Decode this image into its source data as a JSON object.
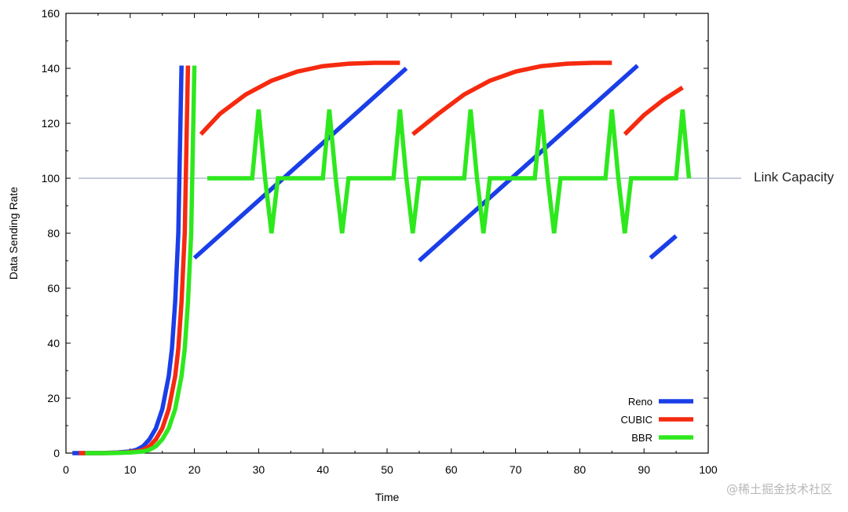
{
  "chart_data": {
    "type": "line",
    "title": "",
    "xlabel": "Time",
    "ylabel": "Data Sending Rate",
    "xlim": [
      0,
      100
    ],
    "ylim": [
      0,
      160
    ],
    "xticks": [
      "0",
      "10",
      "20",
      "30",
      "40",
      "50",
      "60",
      "70",
      "80",
      "90",
      "100"
    ],
    "yticks": [
      "0",
      "20",
      "40",
      "60",
      "80",
      "100",
      "120",
      "140",
      "160"
    ],
    "grid": false,
    "legend_position": "bottom-right",
    "reference_line": {
      "label": "Link Capacity",
      "y": 100,
      "color": "#8a9bb5"
    },
    "series": [
      {
        "name": "Reno",
        "color": "#1a3ee8",
        "segments": [
          [
            [
              1,
              0
            ],
            [
              5,
              0
            ],
            [
              8,
              0.2
            ],
            [
              10,
              0.6
            ],
            [
              11,
              1.2
            ],
            [
              12,
              2.5
            ],
            [
              13,
              5
            ],
            [
              14,
              9
            ],
            [
              15,
              16
            ],
            [
              16,
              28
            ],
            [
              16.5,
              38
            ],
            [
              17,
              55
            ],
            [
              17.5,
              80
            ],
            [
              18,
              141
            ]
          ],
          [
            [
              20,
              71
            ],
            [
              53,
              140
            ]
          ],
          [
            [
              55,
              70
            ],
            [
              89,
              141
            ]
          ],
          [
            [
              91,
              71
            ],
            [
              95,
              79
            ]
          ]
        ]
      },
      {
        "name": "CUBIC",
        "color": "#f52a0f",
        "segments": [
          [
            [
              2,
              0
            ],
            [
              6,
              0
            ],
            [
              9,
              0.2
            ],
            [
              11,
              0.6
            ],
            [
              12,
              1.2
            ],
            [
              13,
              2.5
            ],
            [
              14,
              5
            ],
            [
              15,
              9
            ],
            [
              16,
              16
            ],
            [
              17,
              28
            ],
            [
              17.5,
              38
            ],
            [
              18,
              55
            ],
            [
              18.5,
              80
            ],
            [
              19,
              141
            ]
          ],
          [
            [
              21,
              116
            ],
            [
              24,
              123.5
            ],
            [
              28,
              130.5
            ],
            [
              32,
              135.5
            ],
            [
              36,
              138.8
            ],
            [
              40,
              140.8
            ],
            [
              44,
              141.7
            ],
            [
              48,
              142
            ],
            [
              52,
              142
            ]
          ],
          [
            [
              54,
              116
            ],
            [
              58,
              123.5
            ],
            [
              62,
              130.5
            ],
            [
              66,
              135.5
            ],
            [
              70,
              138.8
            ],
            [
              74,
              140.8
            ],
            [
              78,
              141.7
            ],
            [
              82,
              142
            ],
            [
              85,
              142
            ]
          ],
          [
            [
              87,
              116
            ],
            [
              90,
              123
            ],
            [
              93,
              128.5
            ],
            [
              96,
              133
            ]
          ]
        ]
      },
      {
        "name": "BBR",
        "color": "#2ee81e",
        "segments": [
          [
            [
              3,
              0
            ],
            [
              7,
              0
            ],
            [
              10,
              0.2
            ],
            [
              12,
              0.6
            ],
            [
              13,
              1.2
            ],
            [
              14,
              2.5
            ],
            [
              15,
              5
            ],
            [
              16,
              9
            ],
            [
              17,
              16
            ],
            [
              18,
              28
            ],
            [
              18.5,
              38
            ],
            [
              19,
              55
            ],
            [
              19.5,
              80
            ],
            [
              20,
              141
            ]
          ],
          [
            [
              22,
              100
            ],
            [
              29,
              100
            ],
            [
              30,
              125
            ],
            [
              31,
              100
            ],
            [
              32,
              80
            ],
            [
              33,
              100
            ],
            [
              40,
              100
            ],
            [
              41,
              125
            ],
            [
              42,
              100
            ],
            [
              43,
              80
            ],
            [
              44,
              100
            ],
            [
              51,
              100
            ],
            [
              52,
              125
            ],
            [
              53,
              100
            ],
            [
              54,
              80
            ],
            [
              55,
              100
            ],
            [
              62,
              100
            ],
            [
              63,
              125
            ],
            [
              64,
              100
            ],
            [
              65,
              80
            ],
            [
              66,
              100
            ],
            [
              73,
              100
            ],
            [
              74,
              125
            ],
            [
              75,
              100
            ],
            [
              76,
              80
            ],
            [
              77,
              100
            ],
            [
              84,
              100
            ],
            [
              85,
              125
            ],
            [
              86,
              100
            ],
            [
              87,
              80
            ],
            [
              88,
              100
            ],
            [
              95,
              100
            ],
            [
              96,
              125
            ],
            [
              97,
              100
            ]
          ]
        ]
      }
    ],
    "watermark": "@稀土掘金技术社区"
  }
}
